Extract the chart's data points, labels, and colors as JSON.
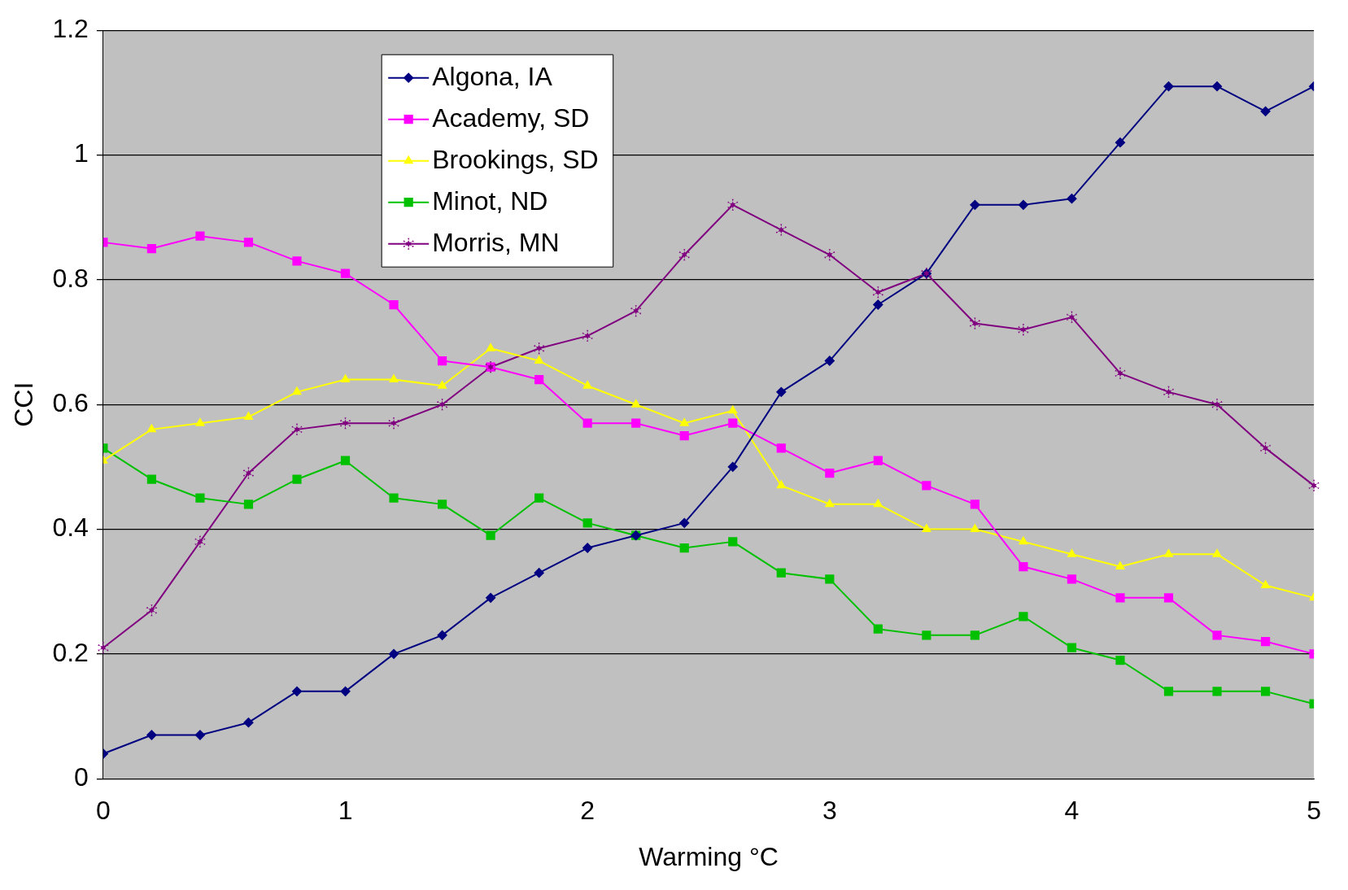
{
  "chart_data": {
    "type": "line",
    "xlabel": "Warming °C",
    "ylabel": "CCI",
    "x": [
      0,
      0.2,
      0.4,
      0.6,
      0.8,
      1,
      1.2,
      1.4,
      1.6,
      1.8,
      2,
      2.2,
      2.4,
      2.6,
      2.8,
      3,
      3.2,
      3.4,
      3.6,
      3.8,
      4,
      4.2,
      4.4,
      4.6,
      4.8,
      5
    ],
    "xlim": [
      0,
      5
    ],
    "xticks": [
      0,
      1,
      2,
      3,
      4,
      5
    ],
    "ylim": [
      0,
      1.2
    ],
    "yticks": [
      0,
      0.2,
      0.4,
      0.6,
      0.8,
      1,
      1.2
    ],
    "grid": "y",
    "legend": "top left",
    "series": [
      {
        "name": "Algona, IA",
        "color": "#000080",
        "marker": "diamond",
        "values": [
          0.04,
          0.07,
          0.07,
          0.09,
          0.14,
          0.14,
          0.2,
          0.23,
          0.29,
          0.33,
          0.37,
          0.39,
          0.41,
          0.5,
          0.62,
          0.67,
          0.76,
          0.81,
          0.92,
          0.92,
          0.93,
          1.02,
          1.11,
          1.11,
          1.07,
          1.11
        ]
      },
      {
        "name": "Academy, SD",
        "color": "#ff00ff",
        "marker": "square",
        "values": [
          0.86,
          0.85,
          0.87,
          0.86,
          0.83,
          0.81,
          0.76,
          0.67,
          0.66,
          0.64,
          0.57,
          0.57,
          0.55,
          0.57,
          0.53,
          0.49,
          0.51,
          0.47,
          0.44,
          0.34,
          0.32,
          0.29,
          0.29,
          0.23,
          0.22,
          0.2
        ]
      },
      {
        "name": "Brookings, SD",
        "color": "#ffff00",
        "marker": "triangle",
        "values": [
          0.51,
          0.56,
          0.57,
          0.58,
          0.62,
          0.64,
          0.64,
          0.63,
          0.69,
          0.67,
          0.63,
          0.6,
          0.57,
          0.59,
          0.47,
          0.44,
          0.44,
          0.4,
          0.4,
          0.38,
          0.36,
          0.34,
          0.36,
          0.36,
          0.31,
          0.29
        ]
      },
      {
        "name": "Minot, ND",
        "color": "#00c000",
        "marker": "square",
        "values": [
          0.53,
          0.48,
          0.45,
          0.44,
          0.48,
          0.51,
          0.45,
          0.44,
          0.39,
          0.45,
          0.41,
          0.39,
          0.37,
          0.38,
          0.33,
          0.32,
          0.24,
          0.23,
          0.23,
          0.26,
          0.21,
          0.19,
          0.14,
          0.14,
          0.14,
          0.12
        ]
      },
      {
        "name": "Morris, MN",
        "color": "#800080",
        "marker": "star",
        "values": [
          0.21,
          0.27,
          0.38,
          0.49,
          0.56,
          0.57,
          0.57,
          0.6,
          0.66,
          0.69,
          0.71,
          0.75,
          0.84,
          0.92,
          0.88,
          0.84,
          0.78,
          0.81,
          0.73,
          0.72,
          0.74,
          0.65,
          0.62,
          0.6,
          0.53,
          0.47
        ]
      }
    ]
  }
}
